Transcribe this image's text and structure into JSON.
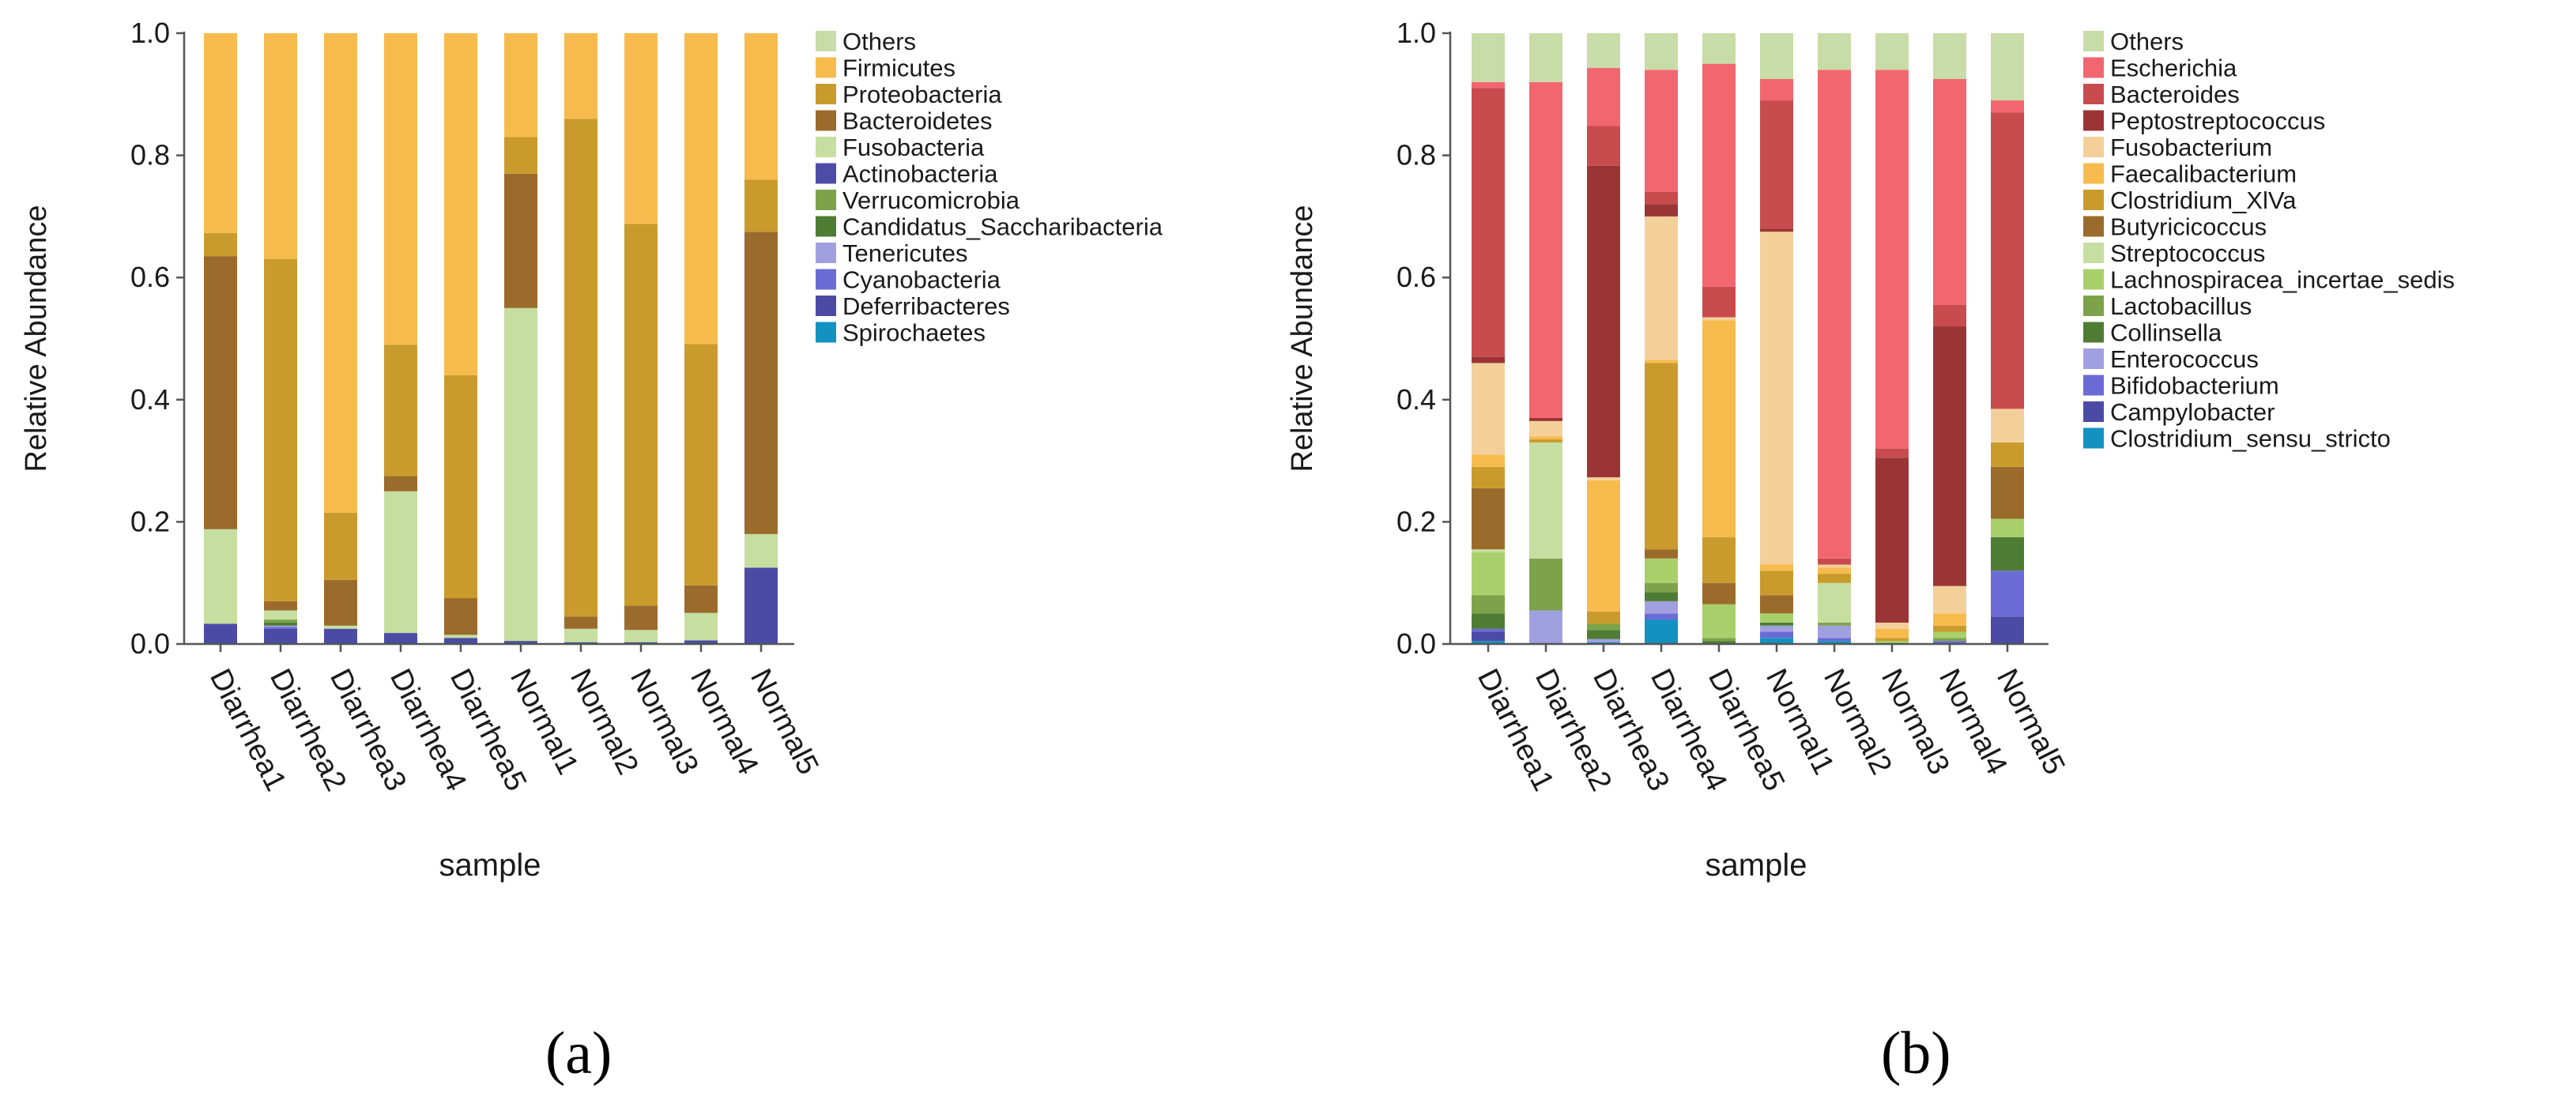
{
  "panel_labels": {
    "a": "(a)",
    "b": "(b)"
  },
  "chart_data": [
    {
      "type": "bar",
      "stacked": true,
      "panel": "(a)",
      "xlabel": "sample",
      "ylabel": "Relative Abundance",
      "ylim": [
        0,
        1
      ],
      "yticks": [
        "0.0",
        "0.2",
        "0.4",
        "0.6",
        "0.8",
        "1.0"
      ],
      "legend_position": "right",
      "categories": [
        "Diarrhea1",
        "Diarrhea2",
        "Diarrhea3",
        "Diarrhea4",
        "Diarrhea5",
        "Normal1",
        "Normal2",
        "Normal3",
        "Normal4",
        "Normal5"
      ],
      "series": [
        {
          "name": "Spirochaetes",
          "color": "#1391c0",
          "values": [
            0,
            0,
            0,
            0,
            0,
            0,
            0,
            0,
            0,
            0
          ]
        },
        {
          "name": "Deferribacteres",
          "color": "#4b4ba6",
          "values": [
            0.033,
            0.025,
            0.025,
            0.018,
            0.01,
            0.005,
            0.003,
            0.003,
            0.006,
            0.125
          ]
        },
        {
          "name": "Cyanobacteria",
          "color": "#6b6bd6",
          "values": [
            0,
            0.003,
            0,
            0,
            0,
            0,
            0,
            0,
            0,
            0
          ]
        },
        {
          "name": "Tenericutes",
          "color": "#a0a0e0",
          "values": [
            0,
            0.002,
            0,
            0,
            0,
            0,
            0,
            0,
            0,
            0
          ]
        },
        {
          "name": "Candidatus_Saccharibacteria",
          "color": "#4e7c33",
          "values": [
            0,
            0.005,
            0,
            0,
            0,
            0,
            0,
            0,
            0,
            0
          ]
        },
        {
          "name": "Verrucomicrobia",
          "color": "#7da34a",
          "values": [
            0,
            0.005,
            0,
            0,
            0,
            0,
            0,
            0,
            0,
            0
          ]
        },
        {
          "name": "Actinobacteria",
          "color": "#4d4da8",
          "values": [
            0,
            0,
            0,
            0,
            0,
            0,
            0,
            0,
            0,
            0
          ]
        },
        {
          "name": "Fusobacteria",
          "color": "#c6dea0",
          "values": [
            0.155,
            0.015,
            0.005,
            0.232,
            0.005,
            0.545,
            0.022,
            0.02,
            0.045,
            0.055
          ]
        },
        {
          "name": "Bacteroidetes",
          "color": "#9b6b2b",
          "values": [
            0.447,
            0.015,
            0.075,
            0.025,
            0.06,
            0.22,
            0.02,
            0.04,
            0.045,
            0.495
          ]
        },
        {
          "name": "Proteobacteria",
          "color": "#c99b2c",
          "values": [
            0.038,
            0.56,
            0.11,
            0.215,
            0.365,
            0.06,
            0.815,
            0.625,
            0.395,
            0.085
          ]
        },
        {
          "name": "Firmicutes",
          "color": "#f7bb4d",
          "values": [
            0.327,
            0.37,
            0.785,
            0.51,
            0.56,
            0.17,
            0.14,
            0.312,
            0.509,
            0.24
          ]
        },
        {
          "name": "Others",
          "color": "#c8dca7",
          "values": [
            0,
            0,
            0,
            0,
            0,
            0,
            0,
            0,
            0,
            0
          ]
        }
      ],
      "legend": [
        "Others",
        "Firmicutes",
        "Proteobacteria",
        "Bacteroidetes",
        "Fusobacteria",
        "Actinobacteria",
        "Verrucomicrobia",
        "Candidatus_Saccharibacteria",
        "Tenericutes",
        "Cyanobacteria",
        "Deferribacteres",
        "Spirochaetes"
      ]
    },
    {
      "type": "bar",
      "stacked": true,
      "panel": "(b)",
      "xlabel": "sample",
      "ylabel": "Relative Abundance",
      "ylim": [
        0,
        1
      ],
      "yticks": [
        "0.0",
        "0.2",
        "0.4",
        "0.6",
        "0.8",
        "1.0"
      ],
      "legend_position": "right",
      "categories": [
        "Diarrhea1",
        "Diarrhea2",
        "Diarrhea3",
        "Diarrhea4",
        "Diarrhea5",
        "Normal1",
        "Normal2",
        "Normal3",
        "Normal4",
        "Normal5"
      ],
      "series": [
        {
          "name": "Clostridium_sensu_stricto",
          "color": "#1391c0",
          "values": [
            0.005,
            0,
            0.003,
            0.04,
            0,
            0.01,
            0.005,
            0,
            0,
            0
          ]
        },
        {
          "name": "Campylobacter",
          "color": "#4b4ba6",
          "values": [
            0.015,
            0,
            0,
            0,
            0,
            0,
            0,
            0,
            0,
            0.045
          ]
        },
        {
          "name": "Bifidobacterium",
          "color": "#6b6bd6",
          "values": [
            0.005,
            0,
            0,
            0.01,
            0,
            0.01,
            0.005,
            0,
            0.005,
            0.075
          ]
        },
        {
          "name": "Enterococcus",
          "color": "#a0a0e0",
          "values": [
            0,
            0.055,
            0.005,
            0.02,
            0,
            0.01,
            0.02,
            0,
            0,
            0
          ]
        },
        {
          "name": "Collinsella",
          "color": "#4e7c33",
          "values": [
            0.025,
            0,
            0.015,
            0.015,
            0.005,
            0.005,
            0,
            0,
            0,
            0.055
          ]
        },
        {
          "name": "Lactobacillus",
          "color": "#7da34a",
          "values": [
            0.03,
            0.085,
            0.01,
            0.015,
            0.005,
            0,
            0.005,
            0,
            0.005,
            0
          ]
        },
        {
          "name": "Lachnospiracea_incertae_sedis",
          "color": "#a8d06a",
          "values": [
            0.07,
            0,
            0,
            0.04,
            0.055,
            0.015,
            0,
            0.005,
            0.01,
            0.03
          ]
        },
        {
          "name": "Streptococcus",
          "color": "#c6dea0",
          "values": [
            0.005,
            0.19,
            0,
            0,
            0,
            0,
            0.065,
            0,
            0,
            0
          ]
        },
        {
          "name": "Butyricicoccus",
          "color": "#9b6b2b",
          "values": [
            0.1,
            0,
            0,
            0.015,
            0.035,
            0.03,
            0,
            0,
            0,
            0.085
          ]
        },
        {
          "name": "Clostridium_XlVa",
          "color": "#c99b2c",
          "values": [
            0.035,
            0.005,
            0.02,
            0.305,
            0.075,
            0.04,
            0.015,
            0.005,
            0.01,
            0.04
          ]
        },
        {
          "name": "Faecalibacterium",
          "color": "#f7bb4d",
          "values": [
            0.02,
            0.005,
            0.215,
            0.005,
            0.355,
            0.01,
            0.01,
            0.015,
            0.02,
            0
          ]
        },
        {
          "name": "Fusobacterium",
          "color": "#f3d09a",
          "values": [
            0.15,
            0.025,
            0.005,
            0.235,
            0.005,
            0.545,
            0.005,
            0.01,
            0.045,
            0.055
          ]
        },
        {
          "name": "Peptostreptococcus",
          "color": "#9b3435",
          "values": [
            0.01,
            0.005,
            0.51,
            0.02,
            0,
            0.005,
            0,
            0.27,
            0.425,
            0
          ]
        },
        {
          "name": "Bacteroides",
          "color": "#c84b4e",
          "values": [
            0.44,
            0,
            0.065,
            0.02,
            0.05,
            0.21,
            0.01,
            0.015,
            0.035,
            0.485
          ]
        },
        {
          "name": "Escherichia",
          "color": "#f26670",
          "values": [
            0.01,
            0.55,
            0.095,
            0.2,
            0.365,
            0.035,
            0.8,
            0.62,
            0.37,
            0.02
          ]
        },
        {
          "name": "Others",
          "color": "#c8dca7",
          "values": [
            0.08,
            0.08,
            0.057,
            0.06,
            0.05,
            0.07,
            0.06,
            0.06,
            0.075,
            0.11
          ]
        }
      ],
      "legend": [
        "Others",
        "Escherichia",
        "Bacteroides",
        "Peptostreptococcus",
        "Fusobacterium",
        "Faecalibacterium",
        "Clostridium_XlVa",
        "Butyricicoccus",
        "Streptococcus",
        "Lachnospiracea_incertae_sedis",
        "Lactobacillus",
        "Collinsella",
        "Enterococcus",
        "Bifidobacterium",
        "Campylobacter",
        "Clostridium_sensu_stricto"
      ]
    }
  ]
}
